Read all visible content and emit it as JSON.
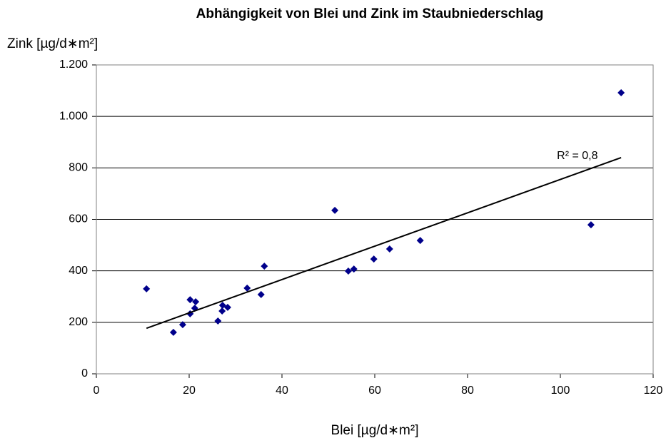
{
  "chart_data": {
    "type": "scatter",
    "title": "Abhängigkeit von Blei und Zink im Staubniederschlag",
    "x_label": "Blei [µg/d∗m²]",
    "y_label": "Zink [µg/d∗m²]",
    "series": [
      {
        "color": "#00008b",
        "x": [
          10.8,
          16.6,
          18.6,
          20.2,
          20.2,
          21.2,
          21.4,
          26.2,
          27.1,
          27.2,
          28.3,
          32.5,
          35.5,
          36.2,
          51.4,
          54.3,
          55.5,
          59.8,
          63.2,
          69.8,
          106.6,
          113.1
        ],
        "values": [
          330,
          161,
          191,
          288,
          233,
          255,
          280,
          205,
          244,
          266,
          258,
          333,
          308,
          418,
          635,
          399,
          407,
          446,
          485,
          518,
          579,
          1092
        ]
      }
    ],
    "trendline": {
      "color": "#000000",
      "x": [
        10.8,
        113.1
      ],
      "values": [
        177,
        840
      ],
      "label": "R² = 0,8"
    },
    "xlim": [
      0,
      120
    ],
    "xticks": [
      0,
      20,
      40,
      60,
      80,
      100,
      120
    ],
    "ylim": [
      0,
      1200
    ],
    "yticks": [
      0,
      200,
      400,
      600,
      800,
      {
        "value": 1000,
        "label": "1.000"
      },
      {
        "value": 1200,
        "label": "1.200"
      }
    ],
    "grid": true
  }
}
